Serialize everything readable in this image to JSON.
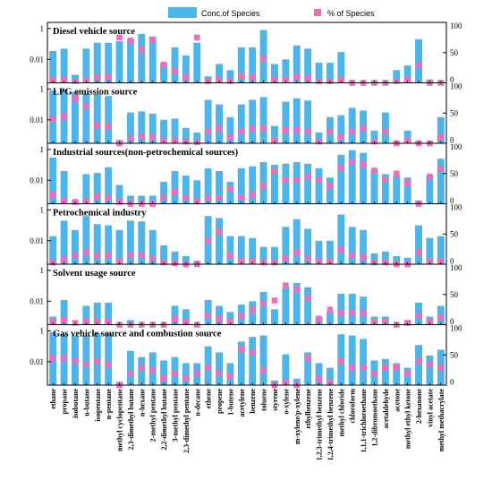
{
  "chart_data": {
    "type": "bar",
    "legend": {
      "placement": "top-right",
      "bar_label": "Conc.of Species",
      "marker_label": "% of Species"
    },
    "colors": {
      "bar": "#4db5ea",
      "marker": "#f06eb8",
      "frame": "#000000"
    },
    "left_axis": {
      "scale": "log",
      "ylim": [
        0.0003,
        2.5
      ],
      "ticks": [
        {
          "value": 1,
          "label": "1"
        },
        {
          "value": 0.01,
          "label": "0.01"
        }
      ]
    },
    "right_axis": {
      "scale": "linear",
      "ylim": [
        0,
        100
      ],
      "ticks": [
        {
          "value": 0,
          "label": "0"
        },
        {
          "value": 50,
          "label": "50"
        },
        {
          "value": 100,
          "label": "100"
        }
      ]
    },
    "categories": [
      "ethane",
      "propane",
      "isobutane",
      "n-butane",
      "isopentane",
      "n-pentane",
      "methyl cyclopentane",
      "2,3-dimethyl butane",
      "n-hexane",
      "2-methyl pentane",
      "2,2-dimethyl butane",
      "3-methyl pentane",
      "2,3-dimethyl pentane",
      "n-decane",
      "ethene",
      "propene",
      "1-butene",
      "acetylene",
      "benzene",
      "toluene",
      "styrene",
      "o-xylene",
      "m-xylene/p-xylene",
      "ethylbenzene",
      "1,2,3-trimethyl benzene",
      "1,2,4-trimethyl benzene",
      "methyl chloride",
      "chloroform",
      "1,1,1-trichloroethane",
      "1,2-dibromoethane",
      "acetaldehyde",
      "acetone",
      "methyl ethyl ketone",
      "2-hexanone",
      "vinyl acetate",
      "methyl methacrylate"
    ],
    "panels": [
      {
        "title": "Diesel vehicle source",
        "conc": [
          0.035,
          0.05,
          0.001,
          0.05,
          0.12,
          0.12,
          0.15,
          0.2,
          0.45,
          0.3,
          0.006,
          0.06,
          0.018,
          0.12,
          0.0008,
          0.005,
          0.002,
          0.06,
          0.06,
          0.8,
          0.005,
          0.01,
          0.08,
          0.05,
          0.006,
          0.006,
          0.03,
          0.0004,
          0.0004,
          0.0004,
          0.0004,
          0.002,
          0.004,
          0.2,
          0.0005,
          0.0004
        ],
        "pct": [
          5,
          5,
          3,
          5,
          10,
          10,
          75,
          70,
          55,
          72,
          30,
          20,
          10,
          75,
          3,
          5,
          3,
          12,
          10,
          40,
          5,
          5,
          10,
          8,
          3,
          3,
          5,
          0,
          0,
          0,
          0,
          3,
          5,
          30,
          0,
          0
        ]
      },
      {
        "title": "LPG emission source",
        "conc": [
          0.8,
          0.9,
          0.65,
          0.5,
          0.45,
          0.35,
          0.0005,
          0.03,
          0.035,
          0.025,
          0.01,
          0.012,
          0.003,
          0.0015,
          0.2,
          0.1,
          0.015,
          0.1,
          0.2,
          0.3,
          0.004,
          0.15,
          0.25,
          0.18,
          0.0015,
          0.015,
          0.02,
          0.06,
          0.04,
          0.002,
          0.03,
          0.0004,
          0.002,
          0.0004,
          0.0004,
          0.015
        ],
        "pct": [
          40,
          45,
          75,
          62,
          30,
          28,
          0,
          8,
          12,
          10,
          5,
          5,
          3,
          2,
          20,
          25,
          10,
          20,
          25,
          25,
          5,
          22,
          22,
          20,
          3,
          20,
          10,
          20,
          25,
          3,
          20,
          0,
          5,
          0,
          0,
          10
        ]
      },
      {
        "title": "Industrial sources(non-petrochemical sources)",
        "conc": [
          0.3,
          0.04,
          0.0005,
          0.025,
          0.03,
          0.07,
          0.005,
          0.001,
          0.001,
          0.001,
          0.008,
          0.04,
          0.02,
          0.01,
          0.06,
          0.04,
          0.008,
          0.06,
          0.08,
          0.15,
          0.1,
          0.12,
          0.15,
          0.12,
          0.06,
          0.015,
          0.45,
          0.9,
          0.6,
          0.05,
          0.025,
          0.02,
          0.015,
          0.0005,
          0.02,
          0.25
        ],
        "pct": [
          15,
          5,
          3,
          5,
          12,
          10,
          3,
          0,
          0,
          0,
          10,
          20,
          10,
          5,
          10,
          10,
          25,
          10,
          15,
          30,
          55,
          40,
          40,
          45,
          40,
          30,
          60,
          70,
          65,
          55,
          40,
          50,
          35,
          0,
          45,
          58
        ]
      },
      {
        "title": "Petrochemical industry",
        "conc": [
          0.02,
          0.2,
          0.05,
          0.4,
          0.12,
          0.1,
          0.05,
          0.2,
          0.18,
          0.05,
          0.005,
          0.002,
          0.001,
          0.0005,
          0.4,
          0.3,
          0.02,
          0.02,
          0.015,
          0.004,
          0.004,
          0.08,
          0.25,
          0.06,
          0.01,
          0.01,
          0.5,
          0.08,
          0.05,
          0.0015,
          0.002,
          0.001,
          0.0008,
          0.1,
          0.015,
          0.02
        ],
        "pct": [
          3,
          8,
          15,
          20,
          15,
          15,
          5,
          15,
          15,
          10,
          3,
          2,
          0,
          0,
          40,
          55,
          15,
          5,
          5,
          3,
          3,
          10,
          20,
          10,
          5,
          5,
          25,
          15,
          12,
          3,
          3,
          0,
          0,
          20,
          5,
          5
        ]
      },
      {
        "title": "Solvent usage source",
        "conc": [
          0.001,
          0.012,
          0.0003,
          0.005,
          0.008,
          0.008,
          0.0002,
          0.0006,
          0.0003,
          0.0003,
          0.0003,
          0.005,
          0.003,
          0.0002,
          0.012,
          0.005,
          0.002,
          0.006,
          0.01,
          0.04,
          0.003,
          0.08,
          0.15,
          0.08,
          0.001,
          0.002,
          0.03,
          0.03,
          0.02,
          0.001,
          0.001,
          0.0002,
          0.0006,
          0.008,
          0.001,
          0.005
        ],
        "pct": [
          5,
          8,
          3,
          5,
          5,
          5,
          0,
          0,
          0,
          0,
          0,
          10,
          5,
          0,
          15,
          10,
          5,
          15,
          25,
          35,
          40,
          65,
          60,
          45,
          10,
          25,
          20,
          20,
          20,
          5,
          5,
          0,
          3,
          15,
          5,
          12
        ]
      },
      {
        "title": "Gas vehicle source and combustion source",
        "conc": [
          0.8,
          0.6,
          0.5,
          0.5,
          0.7,
          0.7,
          0.0005,
          0.05,
          0.02,
          0.04,
          0.012,
          0.02,
          0.008,
          0.008,
          0.1,
          0.04,
          0.008,
          0.2,
          0.4,
          0.5,
          0.0006,
          0.03,
          0.0008,
          0.04,
          0.008,
          0.004,
          0.6,
          0.5,
          0.3,
          0.012,
          0.015,
          0.008,
          0.004,
          0.12,
          0.025,
          0.06
        ],
        "pct": [
          45,
          45,
          40,
          35,
          40,
          35,
          0,
          20,
          30,
          25,
          12,
          20,
          12,
          20,
          30,
          20,
          15,
          60,
          55,
          25,
          0,
          5,
          0,
          45,
          10,
          5,
          40,
          30,
          30,
          20,
          30,
          30,
          20,
          40,
          35,
          30
        ]
      }
    ]
  }
}
